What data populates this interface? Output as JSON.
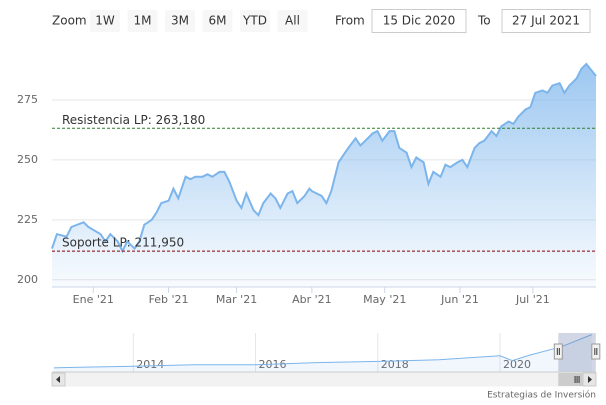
{
  "range_selector": {
    "zoom_label": "Zoom",
    "buttons": [
      "1W",
      "1M",
      "3M",
      "6M",
      "YTD",
      "All"
    ],
    "from_label": "From",
    "from": "15 Dic 2020",
    "to_label": "To",
    "to": "27 Jul 2021"
  },
  "chart_data": {
    "type": "area",
    "color": "#7cb5ec",
    "x": [
      "2020-12-15",
      "2020-12-17",
      "2020-12-21",
      "2020-12-23",
      "2020-12-28",
      "2020-12-30",
      "2021-01-04",
      "2021-01-06",
      "2021-01-08",
      "2021-01-11",
      "2021-01-13",
      "2021-01-15",
      "2021-01-18",
      "2021-01-20",
      "2021-01-22",
      "2021-01-25",
      "2021-01-27",
      "2021-01-29",
      "2021-02-01",
      "2021-02-03",
      "2021-02-05",
      "2021-02-08",
      "2021-02-10",
      "2021-02-12",
      "2021-02-15",
      "2021-02-17",
      "2021-02-19",
      "2021-02-22",
      "2021-02-24",
      "2021-02-26",
      "2021-03-01",
      "2021-03-03",
      "2021-03-05",
      "2021-03-08",
      "2021-03-10",
      "2021-03-12",
      "2021-03-15",
      "2021-03-17",
      "2021-03-19",
      "2021-03-22",
      "2021-03-24",
      "2021-03-26",
      "2021-03-29",
      "2021-03-31",
      "2021-04-01",
      "2021-04-05",
      "2021-04-07",
      "2021-04-09",
      "2021-04-12",
      "2021-04-14",
      "2021-04-16",
      "2021-04-19",
      "2021-04-21",
      "2021-04-23",
      "2021-04-26",
      "2021-04-28",
      "2021-04-30",
      "2021-05-03",
      "2021-05-05",
      "2021-05-07",
      "2021-05-10",
      "2021-05-12",
      "2021-05-14",
      "2021-05-17",
      "2021-05-19",
      "2021-05-21",
      "2021-05-24",
      "2021-05-26",
      "2021-05-28",
      "2021-05-31",
      "2021-06-02",
      "2021-06-04",
      "2021-06-07",
      "2021-06-09",
      "2021-06-11",
      "2021-06-14",
      "2021-06-16",
      "2021-06-18",
      "2021-06-21",
      "2021-06-23",
      "2021-06-25",
      "2021-06-28",
      "2021-06-30",
      "2021-07-02",
      "2021-07-05",
      "2021-07-07",
      "2021-07-09",
      "2021-07-12",
      "2021-07-14",
      "2021-07-16",
      "2021-07-19",
      "2021-07-21",
      "2021-07-23",
      "2021-07-27"
    ],
    "values": [
      213,
      219,
      218,
      222,
      224,
      222,
      219,
      216,
      219,
      216,
      212,
      216,
      213,
      216,
      223,
      225,
      228,
      232,
      233,
      238,
      234,
      243,
      242,
      243,
      243,
      244,
      243,
      245,
      245,
      241,
      233,
      230,
      236,
      229,
      227,
      232,
      236,
      234,
      230,
      236,
      237,
      232,
      235,
      238,
      237,
      235,
      232,
      237,
      249,
      252,
      255,
      259,
      256,
      258,
      261,
      262,
      258,
      262,
      262,
      255,
      253,
      247,
      251,
      249,
      240,
      245,
      243,
      248,
      247,
      249,
      250,
      247,
      255,
      257,
      258,
      262,
      260,
      264,
      266,
      265,
      268,
      271,
      272,
      278,
      279,
      278,
      281,
      282,
      278,
      281,
      284,
      288,
      290,
      285
    ],
    "xlim": [
      "2020-12-15",
      "2021-07-27"
    ],
    "xticks": [
      {
        "value": "2021-01-01",
        "label": "Ene '21"
      },
      {
        "value": "2021-02-01",
        "label": "Feb '21"
      },
      {
        "value": "2021-03-01",
        "label": "Mar '21"
      },
      {
        "value": "2021-04-01",
        "label": "Abr '21"
      },
      {
        "value": "2021-05-01",
        "label": "May '21"
      },
      {
        "value": "2021-06-01",
        "label": "Jun '21"
      },
      {
        "value": "2021-07-01",
        "label": "Jul '21"
      }
    ],
    "ylim": [
      197,
      300
    ],
    "yticks": [
      200,
      225,
      250,
      275
    ],
    "grid": true,
    "plot_lines": [
      {
        "value": 263.18,
        "label": "Resistencia LP: 263,180",
        "color": "#2e7d32"
      },
      {
        "value": 211.95,
        "label": "Soporte LP: 211,950",
        "color": "#8b0000"
      }
    ],
    "navigator": {
      "x": [
        2012.7,
        2013,
        2014,
        2015,
        2016,
        2017,
        2018,
        2019,
        2020,
        2020.2,
        2020.5,
        2021,
        2021.5
      ],
      "values": [
        85,
        88,
        95,
        105,
        105,
        118,
        125,
        135,
        160,
        130,
        165,
        215,
        290
      ],
      "xlim": [
        2012.67,
        2021.57
      ],
      "ylim": [
        60,
        300
      ],
      "xticks": [
        2014,
        2016,
        2018,
        2020
      ]
    },
    "credits": "Estrategias de Inversión"
  }
}
